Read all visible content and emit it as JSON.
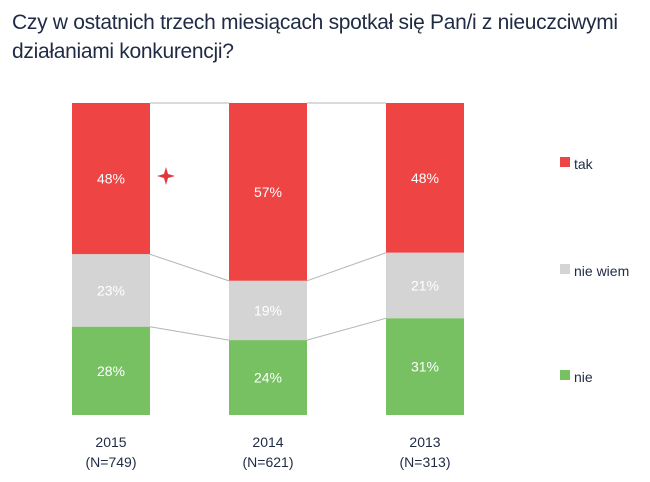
{
  "chart_data": {
    "type": "bar",
    "stacked": true,
    "normalized": true,
    "title": "Czy w ostatnich trzech miesiącach spotkał się Pan/i z nieuczciwymi działaniami konkurencji?",
    "xlabel": "",
    "ylabel": "",
    "categories": [
      "2015",
      "2014",
      "2013"
    ],
    "category_sublabels": [
      "(N=749)",
      "(N=621)",
      "(N=313)"
    ],
    "series": [
      {
        "name": "tak",
        "color": "#ef4444",
        "values": [
          48,
          57,
          48
        ],
        "labels": [
          "48%",
          "57%",
          "48%"
        ]
      },
      {
        "name": "nie wiem",
        "color": "#d4d4d4",
        "values": [
          23,
          19,
          21
        ],
        "labels": [
          "23%",
          "19%",
          "21%"
        ]
      },
      {
        "name": "nie",
        "color": "#77c163",
        "values": [
          28,
          24,
          31
        ],
        "labels": [
          "28%",
          "24%",
          "31%"
        ]
      }
    ],
    "legend_position": "right",
    "grid": false,
    "connector_lines": true
  }
}
